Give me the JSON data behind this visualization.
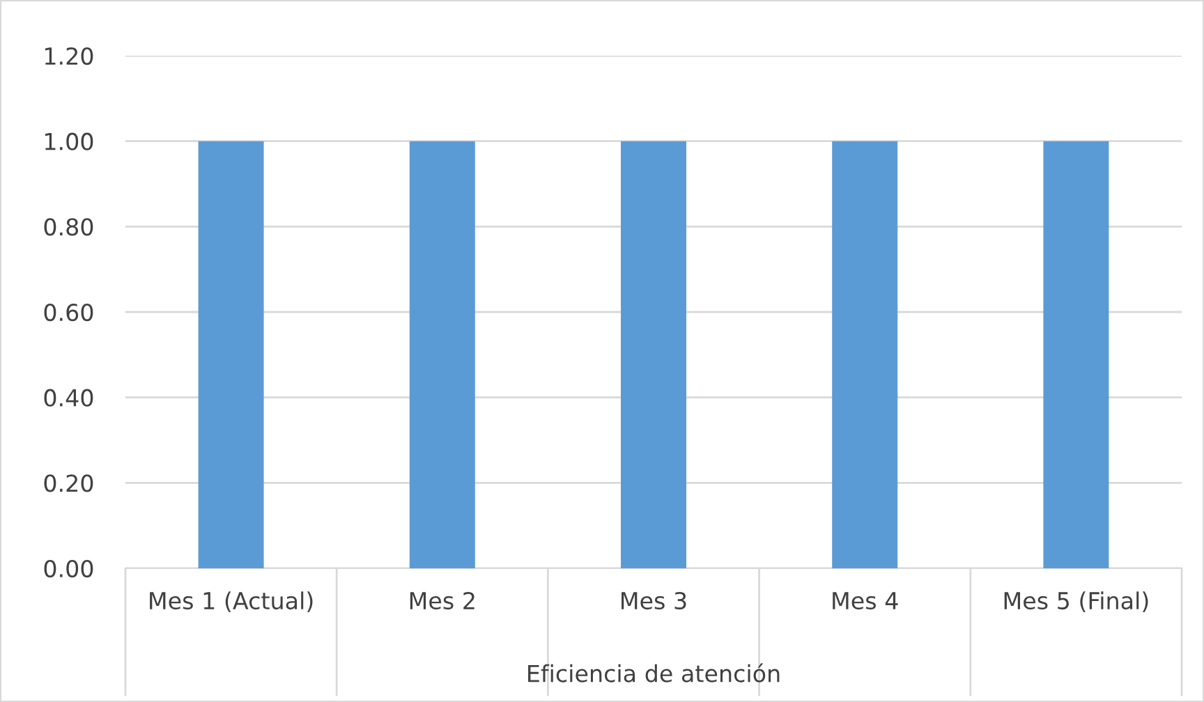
{
  "chart_data": {
    "type": "bar",
    "categories": [
      "Mes 1 (Actual)",
      "Mes 2",
      "Mes 3",
      "Mes 4",
      "Mes 5 (Final)"
    ],
    "values": [
      1.0,
      1.0,
      1.0,
      1.0,
      1.0
    ],
    "color": "#5b9bd5",
    "xlabel": "Eficiencia de atención",
    "ylim": [
      0,
      1.2
    ],
    "yticks": [
      {
        "value": 0,
        "label": "0.00"
      },
      {
        "value": 0.2,
        "label": "0.20"
      },
      {
        "value": 0.4,
        "label": "0.40"
      },
      {
        "value": 0.6,
        "label": "0.60"
      },
      {
        "value": 0.8,
        "label": "0.80"
      },
      {
        "value": 1.0,
        "label": "1.00"
      },
      {
        "value": 1.2,
        "label": "1.20"
      }
    ],
    "grid": "y"
  }
}
